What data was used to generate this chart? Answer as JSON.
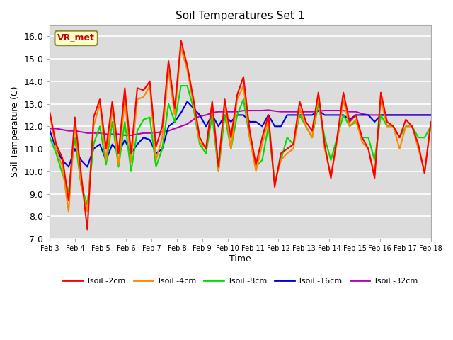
{
  "title": "Soil Temperatures Set 1",
  "xlabel": "Time",
  "ylabel": "Soil Temperature (C)",
  "ylim": [
    7.0,
    16.5
  ],
  "yticks": [
    7.0,
    8.0,
    9.0,
    10.0,
    11.0,
    12.0,
    13.0,
    14.0,
    15.0,
    16.0
  ],
  "xtick_labels": [
    "Feb 3",
    "Feb 4",
    "Feb 5",
    "Feb 6",
    "Feb 7",
    "Feb 8",
    "Feb 9",
    "Feb 10",
    "Feb 11",
    "Feb 12",
    "Feb 13",
    "Feb 14",
    "Feb 15",
    "Feb 16",
    "Feb 17",
    "Feb 18"
  ],
  "annotation_text": "VR_met",
  "colors": {
    "Tsoil -2cm": "#ff0000",
    "Tsoil -4cm": "#ff8800",
    "Tsoil -8cm": "#00dd00",
    "Tsoil -16cm": "#0000dd",
    "Tsoil -32cm": "#bb00bb"
  },
  "plot_bg": "#dcdcdc",
  "t2cm": [
    12.6,
    11.2,
    10.6,
    8.7,
    12.4,
    9.9,
    7.4,
    12.4,
    13.2,
    11.0,
    13.1,
    10.8,
    13.7,
    10.8,
    13.7,
    13.6,
    14.0,
    11.1,
    12.0,
    14.9,
    12.8,
    15.8,
    14.7,
    13.2,
    11.5,
    11.0,
    13.1,
    10.2,
    13.2,
    11.5,
    13.4,
    14.2,
    11.8,
    10.3,
    11.5,
    12.5,
    9.3,
    10.8,
    11.0,
    11.2,
    13.1,
    12.2,
    11.8,
    13.5,
    11.2,
    9.7,
    11.5,
    13.5,
    12.2,
    12.5,
    11.5,
    11.0,
    9.7,
    13.5,
    12.2,
    12.0,
    11.5,
    12.3,
    12.0,
    11.2,
    9.9,
    12.2
  ],
  "t4cm": [
    12.5,
    11.0,
    10.2,
    8.2,
    12.1,
    9.4,
    8.2,
    12.0,
    13.0,
    10.5,
    12.8,
    10.3,
    13.2,
    10.4,
    13.2,
    13.3,
    13.8,
    10.5,
    11.5,
    14.5,
    12.5,
    15.5,
    14.5,
    13.0,
    11.3,
    11.0,
    13.0,
    10.0,
    13.0,
    11.0,
    13.2,
    13.8,
    11.5,
    10.0,
    11.2,
    12.3,
    9.5,
    10.5,
    10.8,
    11.0,
    12.8,
    12.0,
    11.5,
    13.3,
    11.0,
    9.8,
    11.3,
    13.2,
    12.0,
    12.3,
    11.3,
    11.0,
    9.8,
    13.2,
    12.0,
    12.0,
    11.0,
    12.0,
    12.0,
    11.0,
    10.0,
    12.0
  ],
  "t8cm": [
    11.5,
    10.8,
    9.9,
    9.1,
    11.5,
    9.4,
    8.5,
    11.2,
    12.0,
    10.3,
    12.2,
    10.2,
    12.2,
    10.0,
    11.8,
    12.3,
    12.4,
    10.2,
    11.0,
    13.0,
    12.2,
    13.8,
    13.8,
    12.8,
    11.2,
    10.8,
    12.5,
    10.0,
    12.5,
    11.0,
    12.5,
    13.2,
    11.5,
    10.2,
    10.5,
    12.0,
    9.5,
    10.5,
    11.5,
    11.2,
    12.5,
    12.0,
    11.5,
    13.0,
    11.5,
    10.5,
    11.5,
    12.5,
    12.0,
    12.2,
    11.5,
    11.5,
    10.5,
    12.5,
    12.0,
    12.0,
    11.5,
    12.0,
    12.0,
    11.5,
    11.5,
    12.0
  ],
  "t16cm": [
    11.8,
    11.0,
    10.5,
    10.2,
    11.0,
    10.5,
    10.2,
    11.0,
    11.2,
    10.5,
    11.2,
    10.8,
    11.4,
    10.8,
    11.2,
    11.5,
    11.4,
    10.8,
    11.0,
    12.0,
    12.2,
    12.6,
    13.1,
    12.8,
    12.5,
    12.0,
    12.5,
    12.0,
    12.5,
    12.2,
    12.5,
    12.5,
    12.2,
    12.2,
    12.0,
    12.5,
    12.0,
    12.0,
    12.5,
    12.5,
    12.5,
    12.5,
    12.5,
    12.7,
    12.5,
    12.5,
    12.5,
    12.5,
    12.3,
    12.5,
    12.5,
    12.5,
    12.2,
    12.5,
    12.5,
    12.5,
    12.5,
    12.5,
    12.5,
    12.5,
    12.5,
    12.5
  ],
  "t32cm": [
    11.9,
    11.9,
    11.85,
    11.8,
    11.8,
    11.75,
    11.7,
    11.7,
    11.7,
    11.65,
    11.65,
    11.65,
    11.6,
    11.6,
    11.65,
    11.7,
    11.7,
    11.72,
    11.75,
    11.8,
    11.9,
    12.0,
    12.1,
    12.3,
    12.45,
    12.5,
    12.6,
    12.65,
    12.65,
    12.65,
    12.65,
    12.7,
    12.7,
    12.7,
    12.7,
    12.72,
    12.68,
    12.65,
    12.65,
    12.65,
    12.65,
    12.65,
    12.65,
    12.68,
    12.7,
    12.7,
    12.7,
    12.7,
    12.65,
    12.65,
    12.55,
    12.5,
    12.5,
    12.5,
    12.5,
    12.5,
    12.5,
    12.5,
    12.5,
    12.5,
    12.5,
    12.5
  ]
}
